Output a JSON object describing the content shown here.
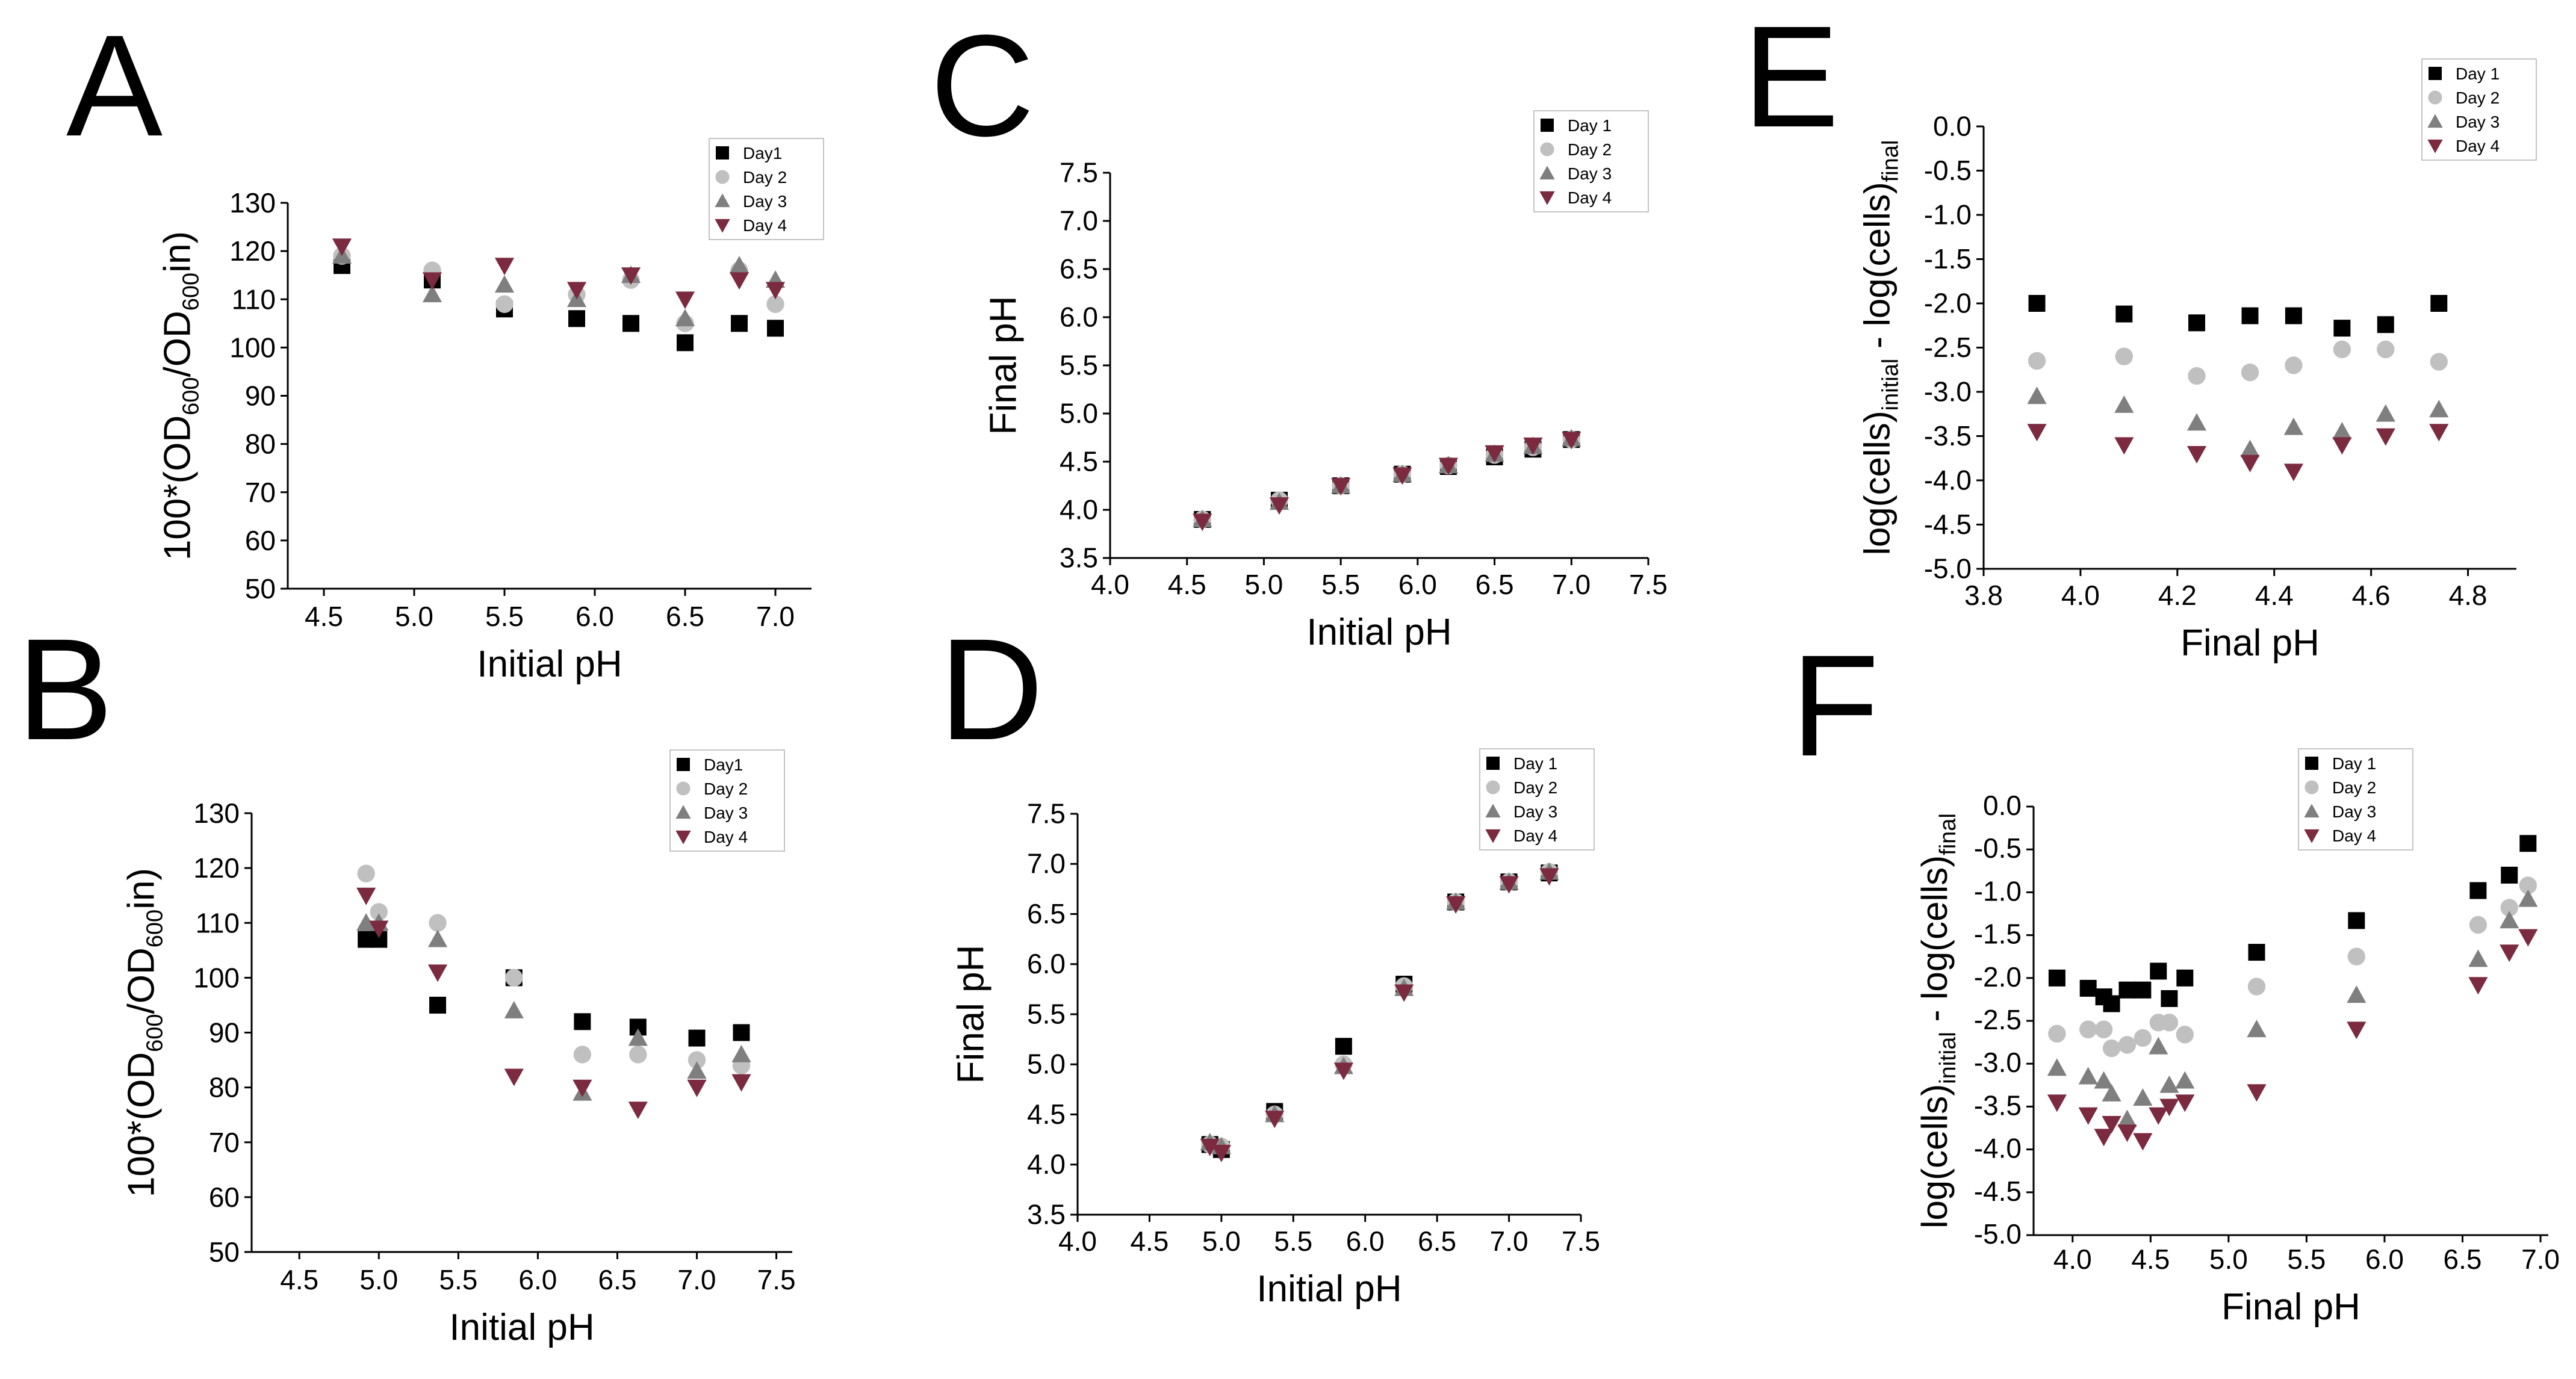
{
  "colors": {
    "day1": "#000000",
    "day2": "#c0c0c0",
    "day3": "#7f7f7f",
    "day4": "#7b2a40"
  },
  "chart_data": [
    {
      "id": "A",
      "letter": "A",
      "type": "scatter",
      "xlabel": "Initial pH",
      "ylabel": "100*(OD600/OD600in)",
      "xlim": [
        4.3,
        7.2
      ],
      "ylim": [
        50,
        130
      ],
      "xticks": [
        "4.5",
        "5.0",
        "5.5",
        "6.0",
        "6.5",
        "7.0"
      ],
      "yticks": [
        "50",
        "60",
        "70",
        "80",
        "90",
        "100",
        "110",
        "120",
        "130"
      ],
      "legend": [
        "Day1",
        "Day 2",
        "Day 3",
        "Day 4"
      ],
      "x": [
        4.6,
        5.1,
        5.5,
        5.9,
        6.2,
        6.5,
        6.8,
        7.0
      ],
      "series": [
        {
          "name": "Day1",
          "marker": "square",
          "values": [
            117,
            114,
            108,
            106,
            105,
            101,
            105,
            104
          ]
        },
        {
          "name": "Day 2",
          "marker": "circle",
          "values": [
            119,
            116,
            109,
            111,
            114,
            105,
            116,
            109
          ]
        },
        {
          "name": "Day 3",
          "marker": "triangle-up",
          "values": [
            119,
            111,
            113,
            110,
            115,
            106,
            117,
            114
          ]
        },
        {
          "name": "Day 4",
          "marker": "triangle-down",
          "values": [
            121,
            114,
            117,
            112,
            115,
            110,
            114,
            112
          ]
        }
      ]
    },
    {
      "id": "B",
      "letter": "B",
      "type": "scatter",
      "xlabel": "Initial pH",
      "ylabel": "100*(OD600/OD600in)",
      "xlim": [
        4.2,
        7.6
      ],
      "ylim": [
        50,
        130
      ],
      "xticks": [
        "4.5",
        "5.0",
        "5.5",
        "6.0",
        "6.5",
        "7.0",
        "7.5"
      ],
      "yticks": [
        "50",
        "60",
        "70",
        "80",
        "90",
        "100",
        "110",
        "120",
        "130"
      ],
      "legend": [
        "Day1",
        "Day 2",
        "Day 3",
        "Day 4"
      ],
      "x": [
        4.92,
        5.0,
        5.37,
        5.85,
        6.28,
        6.63,
        7.0,
        7.28
      ],
      "series": [
        {
          "name": "Day1",
          "marker": "square",
          "values": [
            107,
            107,
            95,
            100,
            92,
            91,
            89,
            90
          ]
        },
        {
          "name": "Day 2",
          "marker": "circle",
          "values": [
            119,
            112,
            110,
            100,
            86,
            86,
            85,
            84
          ]
        },
        {
          "name": "Day 3",
          "marker": "triangle-up",
          "values": [
            110,
            110,
            107,
            94,
            79,
            89,
            83,
            86
          ]
        },
        {
          "name": "Day 4",
          "marker": "triangle-down",
          "values": [
            115,
            109,
            101,
            82,
            80,
            76,
            80,
            81
          ]
        }
      ]
    },
    {
      "id": "C",
      "letter": "C",
      "type": "scatter",
      "xlabel": "Initial pH",
      "ylabel": "Final pH",
      "xlim": [
        4.0,
        7.5
      ],
      "ylim": [
        3.5,
        7.5
      ],
      "xticks": [
        "4.0",
        "4.5",
        "5.0",
        "5.5",
        "6.0",
        "6.5",
        "7.0",
        "7.5"
      ],
      "yticks": [
        "3.5",
        "4.0",
        "4.5",
        "5.0",
        "5.5",
        "6.0",
        "6.5",
        "7.0",
        "7.5"
      ],
      "legend": [
        "Day 1",
        "Day 2",
        "Day 3",
        "Day 4"
      ],
      "x": [
        4.6,
        5.1,
        5.5,
        5.9,
        6.2,
        6.5,
        6.75,
        7.0
      ],
      "series": [
        {
          "name": "Day 1",
          "marker": "square",
          "values": [
            3.9,
            4.1,
            4.25,
            4.37,
            4.45,
            4.55,
            4.63,
            4.73
          ]
        },
        {
          "name": "Day 2",
          "marker": "circle",
          "values": [
            3.9,
            4.1,
            4.25,
            4.37,
            4.46,
            4.57,
            4.65,
            4.73
          ]
        },
        {
          "name": "Day 3",
          "marker": "triangle-up",
          "values": [
            3.9,
            4.08,
            4.25,
            4.37,
            4.46,
            4.58,
            4.66,
            4.74
          ]
        },
        {
          "name": "Day 4",
          "marker": "triangle-down",
          "values": [
            3.88,
            4.05,
            4.25,
            4.36,
            4.46,
            4.59,
            4.67,
            4.73
          ]
        }
      ]
    },
    {
      "id": "D",
      "letter": "D",
      "type": "scatter",
      "xlabel": "Initial pH",
      "ylabel": "Final pH",
      "xlim": [
        4.0,
        7.5
      ],
      "ylim": [
        3.5,
        7.5
      ],
      "xticks": [
        "4.0",
        "4.5",
        "5.0",
        "5.5",
        "6.0",
        "6.5",
        "7.0",
        "7.5"
      ],
      "yticks": [
        "3.5",
        "4.0",
        "4.5",
        "5.0",
        "5.5",
        "6.0",
        "6.5",
        "7.0",
        "7.5"
      ],
      "legend": [
        "Day 1",
        "Day 2",
        "Day 3",
        "Day 4"
      ],
      "x": [
        4.92,
        5.0,
        5.37,
        5.85,
        6.27,
        6.63,
        7.0,
        7.28
      ],
      "series": [
        {
          "name": "Day 1",
          "marker": "square",
          "values": [
            4.2,
            4.15,
            4.53,
            5.18,
            5.8,
            6.62,
            6.82,
            6.91
          ]
        },
        {
          "name": "Day 2",
          "marker": "circle",
          "values": [
            4.2,
            4.18,
            4.5,
            5.0,
            5.78,
            6.62,
            6.82,
            6.92
          ]
        },
        {
          "name": "Day 3",
          "marker": "triangle-up",
          "values": [
            4.22,
            4.18,
            4.5,
            4.98,
            5.76,
            6.62,
            6.82,
            6.92
          ]
        },
        {
          "name": "Day 4",
          "marker": "triangle-down",
          "values": [
            4.18,
            4.12,
            4.46,
            4.94,
            5.72,
            6.6,
            6.8,
            6.88
          ]
        }
      ]
    },
    {
      "id": "E",
      "letter": "E",
      "type": "scatter",
      "xlabel": "Final pH",
      "ylabel": "log(cells)initial - log(cells)final",
      "xlim": [
        3.8,
        4.9
      ],
      "ylim": [
        -5.0,
        0.0
      ],
      "xticks": [
        "3.8",
        "4.0",
        "4.2",
        "4.4",
        "4.6",
        "4.8"
      ],
      "yticks": [
        "-5.0",
        "-4.5",
        "-4.0",
        "-3.5",
        "-3.0",
        "-2.5",
        "-2.0",
        "-1.5",
        "-1.0",
        "-0.5",
        "0.0"
      ],
      "legend": [
        "Day 1",
        "Day 2",
        "Day 3",
        "Day 4"
      ],
      "x": [
        3.91,
        4.09,
        4.24,
        4.35,
        4.44,
        4.54,
        4.63,
        4.74
      ],
      "series": [
        {
          "name": "Day 1",
          "marker": "square",
          "values": [
            -2.0,
            -2.12,
            -2.22,
            -2.14,
            -2.14,
            -2.28,
            -2.24,
            -2.0
          ]
        },
        {
          "name": "Day 2",
          "marker": "circle",
          "values": [
            -2.65,
            -2.6,
            -2.82,
            -2.78,
            -2.7,
            -2.52,
            -2.52,
            -2.66
          ]
        },
        {
          "name": "Day 3",
          "marker": "triangle-up",
          "values": [
            -3.05,
            -3.15,
            -3.35,
            -3.65,
            -3.4,
            -3.45,
            -3.25,
            -3.2
          ]
        },
        {
          "name": "Day 4",
          "marker": "triangle-down",
          "values": [
            -3.45,
            -3.6,
            -3.7,
            -3.8,
            -3.9,
            -3.6,
            -3.5,
            -3.45
          ]
        }
      ]
    },
    {
      "id": "F",
      "letter": "F",
      "type": "scatter",
      "xlabel": "Final pH",
      "ylabel": "log(cells)initial - log(cells)final",
      "xlim": [
        3.75,
        7.05
      ],
      "ylim": [
        -5.0,
        0.0
      ],
      "xticks": [
        "4.0",
        "4.5",
        "5.0",
        "5.5",
        "6.0",
        "6.5",
        "7.0"
      ],
      "yticks": [
        "-5.0",
        "-4.5",
        "-4.0",
        "-3.5",
        "-3.0",
        "-2.5",
        "-2.0",
        "-1.5",
        "-1.0",
        "-0.5",
        "0.0"
      ],
      "legend": [
        "Day 1",
        "Day 2",
        "Day 3",
        "Day 4"
      ],
      "x": [
        3.9,
        4.1,
        4.2,
        4.25,
        4.35,
        4.45,
        4.55,
        4.62,
        4.72,
        5.18,
        5.82,
        6.6,
        6.8,
        6.92
      ],
      "series": [
        {
          "name": "Day 1",
          "marker": "square",
          "values": [
            -2.0,
            -2.12,
            -2.22,
            -2.3,
            -2.14,
            -2.14,
            -1.92,
            -2.24,
            -2.0,
            -1.7,
            -1.33,
            -0.98,
            -0.8,
            -0.43
          ]
        },
        {
          "name": "Day 2",
          "marker": "circle",
          "values": [
            -2.65,
            -2.6,
            -2.6,
            -2.82,
            -2.78,
            -2.7,
            -2.52,
            -2.52,
            -2.66,
            -2.1,
            -1.75,
            -1.38,
            -1.18,
            -0.92
          ]
        },
        {
          "name": "Day 3",
          "marker": "triangle-up",
          "values": [
            -3.05,
            -3.15,
            -3.2,
            -3.35,
            -3.65,
            -3.4,
            -2.8,
            -3.25,
            -3.2,
            -2.6,
            -2.2,
            -1.78,
            -1.33,
            -1.08
          ]
        },
        {
          "name": "Day 4",
          "marker": "triangle-down",
          "values": [
            -3.45,
            -3.6,
            -3.85,
            -3.7,
            -3.8,
            -3.9,
            -3.6,
            -3.5,
            -3.45,
            -3.33,
            -2.6,
            -2.08,
            -1.7,
            -1.52
          ]
        }
      ]
    }
  ]
}
